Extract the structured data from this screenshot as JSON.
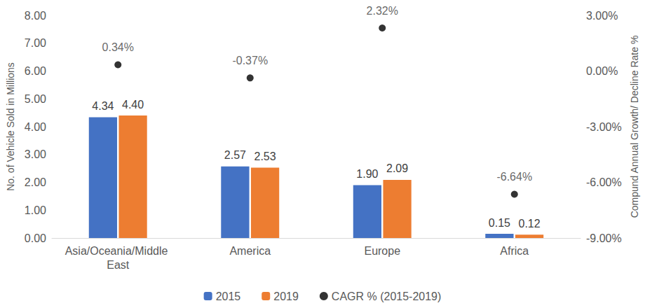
{
  "chart_data": {
    "type": "bar",
    "categories": [
      "Asia/Oceania/Middle East",
      "America",
      "Europe",
      "Africa"
    ],
    "series": [
      {
        "name": "2015",
        "type": "bar",
        "color": "#4472c4",
        "values": [
          4.34,
          2.57,
          1.9,
          0.15
        ],
        "value_labels": [
          "4.34",
          "2.57",
          "1.90",
          "0.15"
        ]
      },
      {
        "name": "2019",
        "type": "bar",
        "color": "#ed7d31",
        "values": [
          4.4,
          2.53,
          2.09,
          0.12
        ],
        "value_labels": [
          "4.40",
          "2.53",
          "2.09",
          "0.12"
        ]
      },
      {
        "name": "CAGR % (2015-2019)",
        "type": "scatter",
        "axis": "y2",
        "color": "#000000",
        "marker": "circle",
        "values": [
          0.34,
          -0.37,
          2.32,
          -6.64
        ],
        "value_labels": [
          "0.34%",
          "-0.37%",
          "2.32%",
          "-6.64%"
        ]
      }
    ],
    "y_label": "No. of Vehicle Sold in Millions",
    "y2_label": "Compund Annual Growth/ Decline Rate %",
    "ylim": [
      0,
      8
    ],
    "yticks": [
      {
        "value": 0,
        "label": "0.00"
      },
      {
        "value": 1,
        "label": "1.00"
      },
      {
        "value": 2,
        "label": "2.00"
      },
      {
        "value": 3,
        "label": "3.00"
      },
      {
        "value": 4,
        "label": "4.00"
      },
      {
        "value": 5,
        "label": "5.00"
      },
      {
        "value": 6,
        "label": "6.00"
      },
      {
        "value": 7,
        "label": "7.00"
      },
      {
        "value": 8,
        "label": "8.00"
      }
    ],
    "y2lim": [
      -9,
      3
    ],
    "y2ticks": [
      {
        "value": -9,
        "label": "-9.00%"
      },
      {
        "value": -6,
        "label": "-6.00%"
      },
      {
        "value": -3,
        "label": "-3.00%"
      },
      {
        "value": 0,
        "label": "0.00%"
      },
      {
        "value": 3,
        "label": "3.00%"
      }
    ],
    "data_labels": true,
    "grid": false,
    "legend": "bottom"
  }
}
